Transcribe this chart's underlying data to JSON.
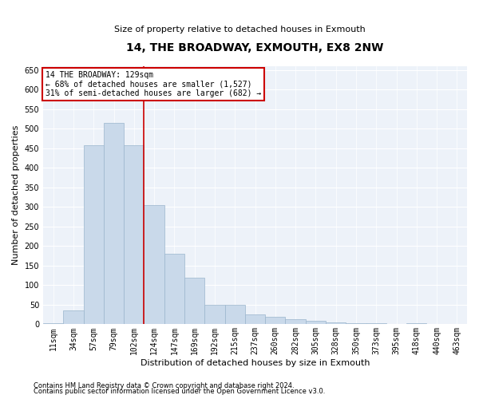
{
  "title": "14, THE BROADWAY, EXMOUTH, EX8 2NW",
  "subtitle": "Size of property relative to detached houses in Exmouth",
  "xlabel": "Distribution of detached houses by size in Exmouth",
  "ylabel": "Number of detached properties",
  "footnote1": "Contains HM Land Registry data © Crown copyright and database right 2024.",
  "footnote2": "Contains public sector information licensed under the Open Government Licence v3.0.",
  "annotation_title": "14 THE BROADWAY: 129sqm",
  "annotation_line1": "← 68% of detached houses are smaller (1,527)",
  "annotation_line2": "31% of semi-detached houses are larger (682) →",
  "bar_color": "#c9d9ea",
  "bar_edge_color": "#9ab5cc",
  "vline_color": "#cc0000",
  "bg_color": "#edf2f9",
  "categories": [
    "11sqm",
    "34sqm",
    "57sqm",
    "79sqm",
    "102sqm",
    "124sqm",
    "147sqm",
    "169sqm",
    "192sqm",
    "215sqm",
    "237sqm",
    "260sqm",
    "282sqm",
    "305sqm",
    "328sqm",
    "350sqm",
    "373sqm",
    "395sqm",
    "418sqm",
    "440sqm",
    "463sqm"
  ],
  "values": [
    3,
    35,
    457,
    515,
    457,
    305,
    180,
    120,
    50,
    50,
    25,
    20,
    13,
    8,
    5,
    3,
    2,
    1,
    3,
    1,
    1
  ],
  "vline_x_index": 5,
  "ylim": [
    0,
    660
  ],
  "yticks": [
    0,
    50,
    100,
    150,
    200,
    250,
    300,
    350,
    400,
    450,
    500,
    550,
    600,
    650
  ],
  "title_fontsize": 10,
  "subtitle_fontsize": 8,
  "ylabel_fontsize": 8,
  "xlabel_fontsize": 8,
  "tick_fontsize": 7,
  "annot_fontsize": 7,
  "footnote_fontsize": 6
}
